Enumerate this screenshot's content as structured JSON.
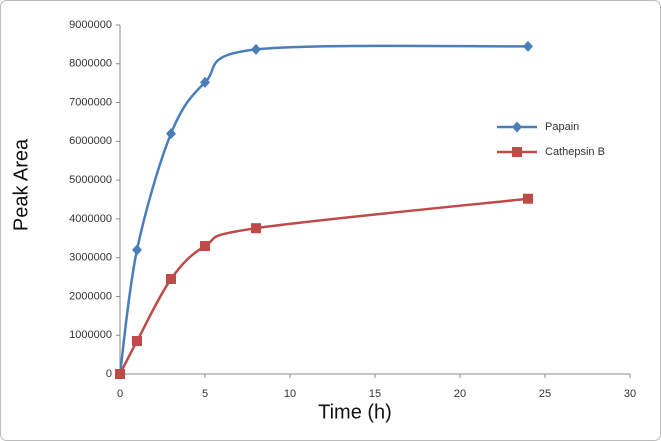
{
  "chart_data": {
    "type": "line",
    "x_label": "Time (h)",
    "y_label": "Peak Area",
    "x": [
      0,
      1,
      3,
      5,
      8,
      24
    ],
    "series": [
      {
        "name": "Papain",
        "color": "#4a7ebb",
        "marker": "diamond",
        "values": [
          0,
          3200000,
          6200000,
          7520000,
          8370000,
          8450000
        ]
      },
      {
        "name": "Cathepsin B",
        "color": "#be4b48",
        "marker": "square",
        "values": [
          0,
          850000,
          2450000,
          3300000,
          3760000,
          4520000
        ]
      }
    ],
    "xlim": [
      0,
      30
    ],
    "xticks": [
      0,
      5,
      10,
      15,
      20,
      25,
      30
    ],
    "ylim": [
      0,
      9000000
    ],
    "yticks": [
      0,
      1000000,
      2000000,
      3000000,
      4000000,
      5000000,
      6000000,
      7000000,
      8000000,
      9000000
    ],
    "grid": false,
    "smooth": true,
    "legend_position": "right"
  }
}
